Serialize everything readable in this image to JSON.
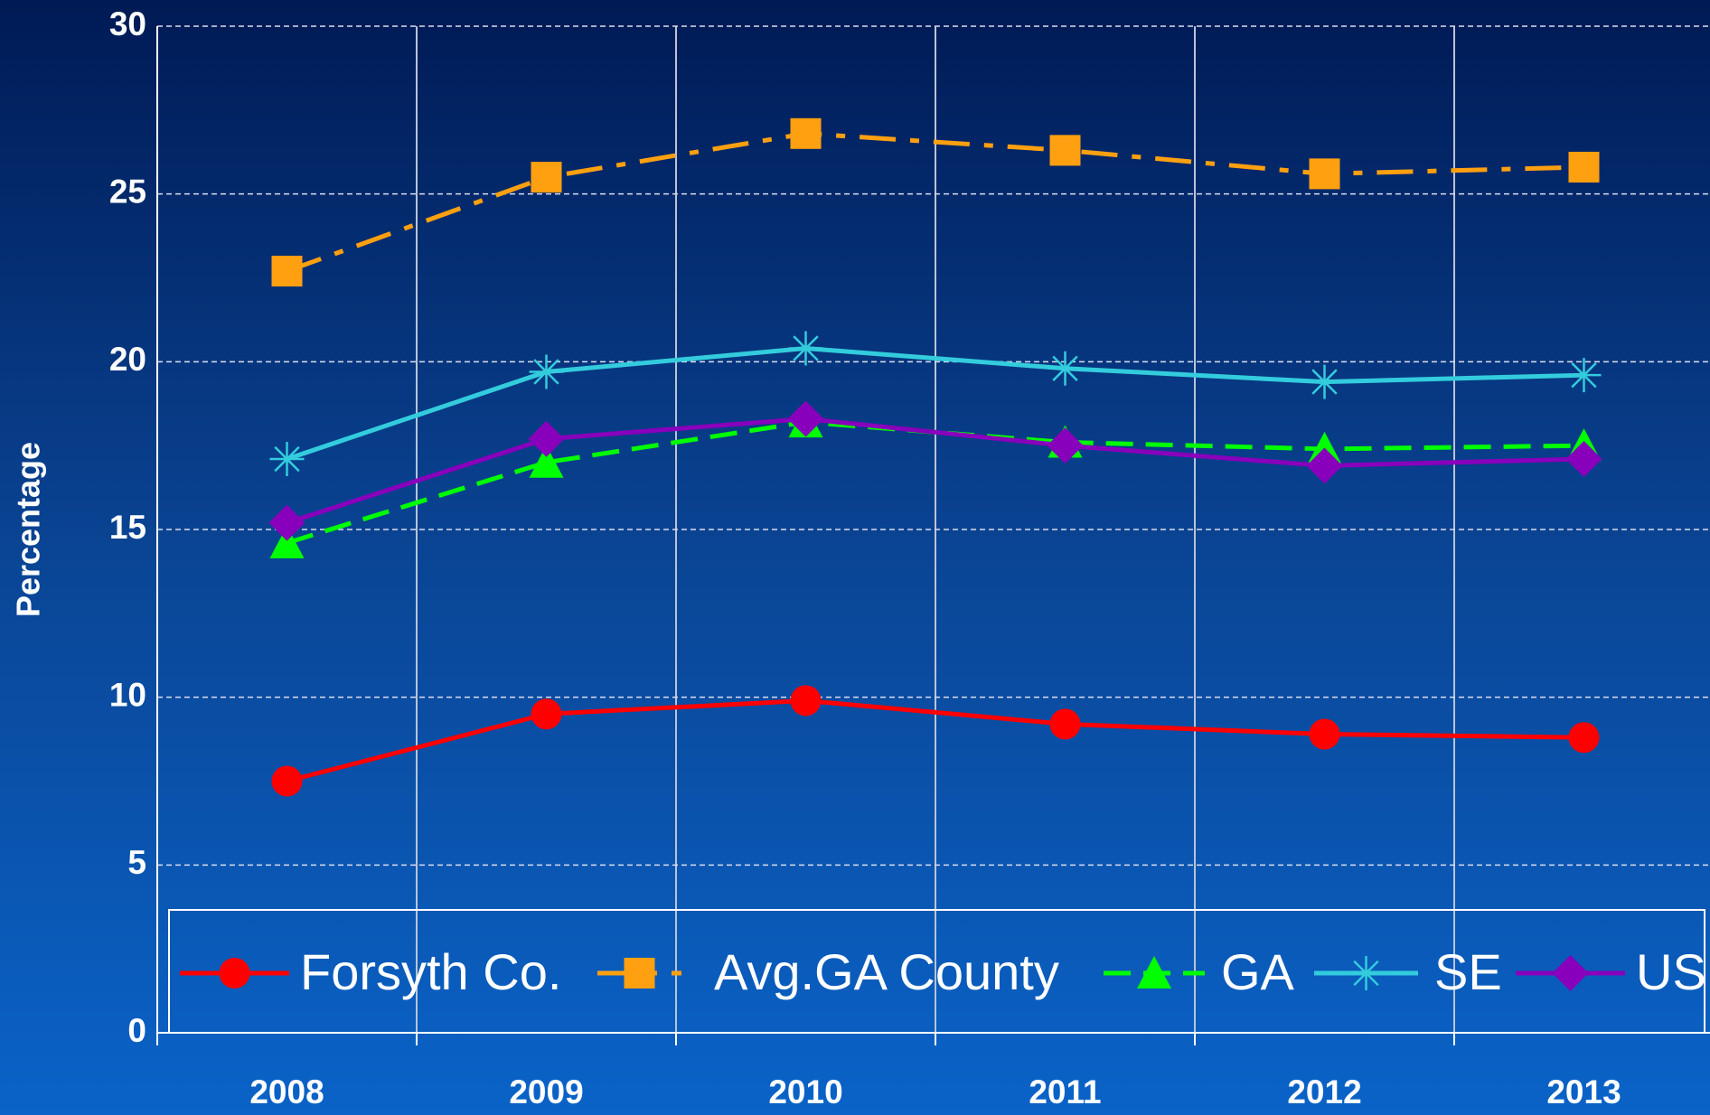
{
  "chart_data": {
    "type": "line",
    "ylabel": "Percentage",
    "categories": [
      "2008",
      "2009",
      "2010",
      "2011",
      "2012",
      "2013"
    ],
    "ylim": [
      0,
      30
    ],
    "yticks": [
      0,
      5,
      10,
      15,
      20,
      25,
      30
    ],
    "grid": true,
    "series": [
      {
        "name": "Forsyth Co.",
        "color": "#ff0000",
        "dash": "solid",
        "marker": "circle",
        "values": [
          7.5,
          9.5,
          9.9,
          9.2,
          8.9,
          8.8
        ]
      },
      {
        "name": "Avg.GA County",
        "color": "#ffa010",
        "dash": "dashdot",
        "marker": "square",
        "values": [
          22.7,
          25.5,
          26.8,
          26.3,
          25.6,
          25.8
        ]
      },
      {
        "name": "GA",
        "color": "#00ff00",
        "dash": "dashed",
        "marker": "triangle",
        "values": [
          14.6,
          17.0,
          18.2,
          17.6,
          17.4,
          17.5
        ]
      },
      {
        "name": "SE",
        "color": "#33ccdd",
        "dash": "solid",
        "marker": "asterisk",
        "values": [
          17.1,
          19.7,
          20.4,
          19.8,
          19.4,
          19.6
        ]
      },
      {
        "name": "US",
        "color": "#8800bb",
        "dash": "solid",
        "marker": "diamond",
        "values": [
          15.2,
          17.7,
          18.3,
          17.5,
          16.9,
          17.1
        ]
      }
    ]
  }
}
